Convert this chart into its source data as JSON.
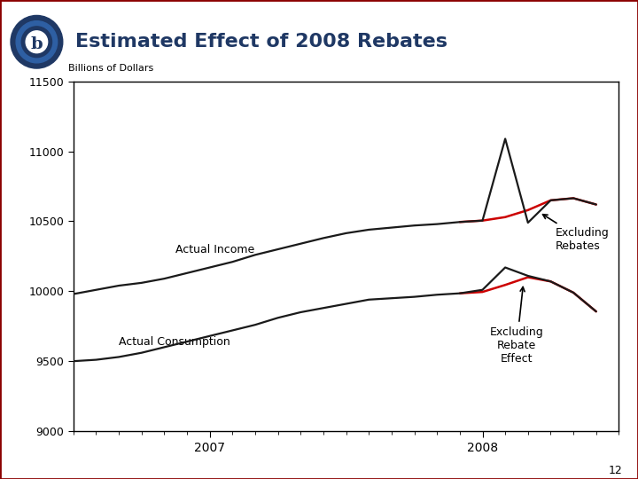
{
  "title": "Estimated Effect of 2008 Rebates",
  "ylabel": "Billions of Dollars",
  "bg_color": "#ffffff",
  "plot_bg_color": "#ffffff",
  "line_color_black": "#1a1a1a",
  "line_color_red": "#cc0000",
  "title_color": "#1f3864",
  "logo_outer_color": "#1f3864",
  "logo_ring_color": "#4472c4",
  "ylim": [
    9000,
    11500
  ],
  "yticks": [
    9000,
    9500,
    10000,
    10500,
    11000,
    11500
  ],
  "xlim_min": 0,
  "xlim_max": 24,
  "x_2007_tick": 6,
  "x_2008_tick": 18,
  "xtick_labels": [
    "2007",
    "2008"
  ],
  "actual_income_x": [
    0,
    1,
    2,
    3,
    4,
    5,
    6,
    7,
    8,
    9,
    10,
    11,
    12,
    13,
    14,
    15,
    16,
    17,
    18,
    19,
    20,
    21,
    22,
    23
  ],
  "actual_income_y": [
    9980,
    10010,
    10040,
    10060,
    10090,
    10130,
    10170,
    10210,
    10260,
    10300,
    10340,
    10380,
    10415,
    10440,
    10455,
    10470,
    10480,
    10495,
    10505,
    11090,
    10490,
    10650,
    10665,
    10620
  ],
  "income_excl_rebates_x": [
    17,
    18,
    19,
    20,
    21,
    22,
    23
  ],
  "income_excl_rebates_y": [
    10495,
    10505,
    10530,
    10580,
    10650,
    10665,
    10620
  ],
  "actual_consumption_x": [
    0,
    1,
    2,
    3,
    4,
    5,
    6,
    7,
    8,
    9,
    10,
    11,
    12,
    13,
    14,
    15,
    16,
    17,
    18,
    19,
    20,
    21,
    22,
    23
  ],
  "actual_consumption_y": [
    9500,
    9510,
    9530,
    9560,
    9600,
    9640,
    9680,
    9720,
    9760,
    9810,
    9850,
    9880,
    9910,
    9940,
    9950,
    9960,
    9975,
    9985,
    10010,
    10170,
    10110,
    10070,
    9990,
    9855
  ],
  "consumption_excl_rebates_x": [
    17,
    18,
    19,
    20,
    21,
    22,
    23
  ],
  "consumption_excl_rebates_y": [
    9985,
    9995,
    10045,
    10100,
    10070,
    9990,
    9855
  ],
  "n_points": 24
}
